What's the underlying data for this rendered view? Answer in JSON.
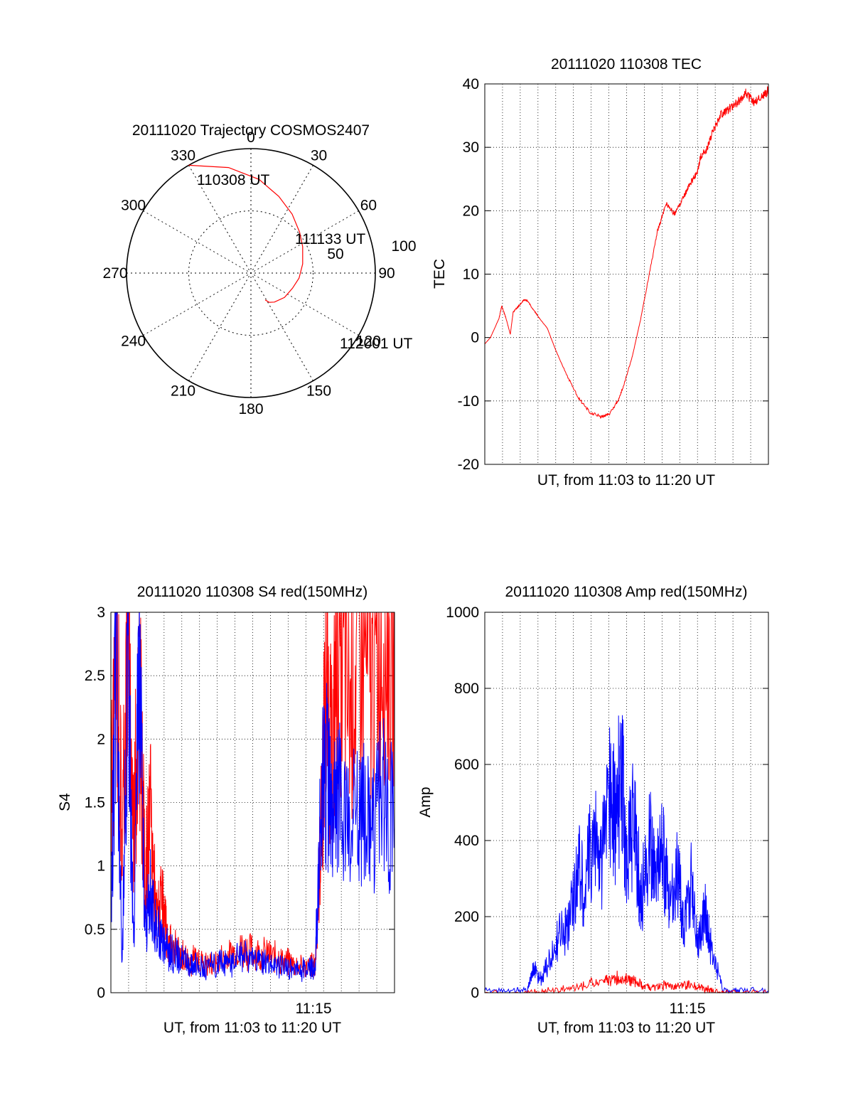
{
  "chart_data": [
    {
      "type": "polar",
      "title": "20111020 Trajectory COSMOS2407",
      "angle_labels": [
        "0",
        "30",
        "60",
        "90",
        "120",
        "150",
        "180",
        "210",
        "240",
        "270",
        "300",
        "330"
      ],
      "radial_labels": [
        "50",
        "100"
      ],
      "annotations": {
        "start_label": "110308 UT",
        "mid_label": "111133 UT",
        "end_label": "112001 UT"
      },
      "series": [
        {
          "color": "#ff0000",
          "points_az_el": [
            [
              330,
              0
            ],
            [
              348,
              12
            ],
            [
              5,
              22
            ],
            [
              20,
              31
            ],
            [
              35,
              38
            ],
            [
              50,
              44
            ],
            [
              63,
              48
            ],
            [
              80,
              52
            ],
            [
              96,
              55
            ],
            [
              110,
              58
            ],
            [
              126,
              60
            ],
            [
              141,
              63
            ],
            [
              148,
              65
            ],
            [
              152,
              68
            ]
          ]
        }
      ]
    },
    {
      "type": "line",
      "title": "20111020 110308 TEC",
      "xlabel": "UT, from 11:03 to 11:20 UT",
      "ylabel": "TEC",
      "ylim": [
        -20,
        40
      ],
      "yticks": [
        "-20",
        "-10",
        "0",
        "10",
        "20",
        "30",
        "40"
      ],
      "xlim": [
        0,
        1
      ],
      "grid": true,
      "series": [
        {
          "color": "#ff0000",
          "x": [
            0,
            0.02,
            0.05,
            0.06,
            0.075,
            0.09,
            0.1,
            0.12,
            0.14,
            0.15,
            0.17,
            0.19,
            0.22,
            0.25,
            0.29,
            0.33,
            0.37,
            0.41,
            0.44,
            0.47,
            0.49,
            0.52,
            0.55,
            0.58,
            0.61,
            0.64,
            0.67,
            0.7,
            0.72,
            0.75,
            0.76,
            0.78,
            0.8,
            0.83,
            0.86,
            0.89,
            0.92,
            0.95,
            0.98,
            1.0
          ],
          "y": [
            -1,
            0,
            3,
            5,
            3,
            0.5,
            4,
            5,
            6,
            5.8,
            4.5,
            3.2,
            1.5,
            -2,
            -6,
            -9.5,
            -11.8,
            -12.5,
            -12,
            -10,
            -7.5,
            -3,
            3,
            10,
            17,
            21,
            19.5,
            22,
            24,
            26,
            28.5,
            29.5,
            32,
            35,
            36,
            37,
            38.5,
            37,
            38,
            39
          ]
        }
      ]
    },
    {
      "type": "line",
      "title": "20111020 110308 S4 red(150MHz)",
      "xlabel": "UT, from 11:03 to 11:20 UT",
      "ylabel": "S4",
      "ylim": [
        0,
        3
      ],
      "yticks": [
        "0",
        "0.5",
        "1",
        "1.5",
        "2",
        "2.5",
        "3"
      ],
      "xtick_label": "11:15",
      "grid": true,
      "series": [
        {
          "color": "#ff0000",
          "x": [
            0.0,
            0.02,
            0.04,
            0.06,
            0.08,
            0.1,
            0.12,
            0.14,
            0.16,
            0.18,
            0.2,
            0.22,
            0.25,
            0.28,
            0.3,
            0.34,
            0.38,
            0.42,
            0.46,
            0.5,
            0.54,
            0.58,
            0.62,
            0.66,
            0.7,
            0.72,
            0.74,
            0.76,
            0.78,
            0.8,
            0.84,
            0.88,
            0.92,
            0.96,
            1.0
          ],
          "y": [
            1.5,
            2.8,
            1.2,
            2.9,
            1.3,
            2.5,
            0.9,
            1.4,
            0.6,
            0.7,
            0.4,
            0.35,
            0.3,
            0.25,
            0.27,
            0.22,
            0.25,
            0.3,
            0.35,
            0.32,
            0.3,
            0.28,
            0.25,
            0.2,
            0.22,
            0.2,
            1.2,
            2.5,
            1.7,
            2.9,
            2.2,
            2.8,
            2.4,
            2.9,
            2.6
          ]
        },
        {
          "color": "#0000ff",
          "x": [
            0.0,
            0.02,
            0.04,
            0.06,
            0.08,
            0.1,
            0.12,
            0.14,
            0.16,
            0.18,
            0.2,
            0.22,
            0.25,
            0.28,
            0.3,
            0.34,
            0.38,
            0.42,
            0.46,
            0.5,
            0.54,
            0.58,
            0.62,
            0.66,
            0.7,
            0.72,
            0.74,
            0.76,
            0.78,
            0.8,
            0.84,
            0.88,
            0.92,
            0.96,
            1.0
          ],
          "y": [
            0.5,
            2.9,
            0.2,
            2.8,
            0.3,
            2.7,
            0.5,
            0.8,
            0.5,
            0.4,
            0.35,
            0.3,
            0.27,
            0.22,
            0.23,
            0.2,
            0.22,
            0.25,
            0.28,
            0.26,
            0.23,
            0.21,
            0.2,
            0.18,
            0.2,
            0.18,
            1.5,
            1.8,
            1.2,
            1.6,
            1.3,
            1.5,
            1.2,
            1.6,
            1.3
          ]
        }
      ]
    },
    {
      "type": "line",
      "title": "20111020 110308 Amp red(150MHz)",
      "xlabel": "UT, from 11:03 to 11:20 UT",
      "ylabel": "Amp",
      "ylim": [
        0,
        1000
      ],
      "yticks": [
        "0",
        "200",
        "400",
        "600",
        "800",
        "1000"
      ],
      "xtick_label": "11:15",
      "grid": true,
      "series": [
        {
          "color": "#0000ff",
          "x": [
            0,
            0.1,
            0.15,
            0.17,
            0.2,
            0.24,
            0.27,
            0.3,
            0.33,
            0.35,
            0.38,
            0.41,
            0.44,
            0.46,
            0.48,
            0.5,
            0.53,
            0.55,
            0.58,
            0.6,
            0.63,
            0.65,
            0.68,
            0.7,
            0.73,
            0.75,
            0.78,
            0.8,
            0.84,
            0.9,
            1.0
          ],
          "y": [
            5,
            5,
            10,
            60,
            40,
            100,
            160,
            180,
            350,
            260,
            420,
            330,
            560,
            450,
            590,
            380,
            460,
            230,
            410,
            290,
            390,
            210,
            320,
            180,
            290,
            140,
            210,
            110,
            5,
            5,
            5
          ]
        },
        {
          "color": "#ff0000",
          "x": [
            0,
            0.15,
            0.22,
            0.3,
            0.36,
            0.42,
            0.46,
            0.5,
            0.53,
            0.56,
            0.6,
            0.65,
            0.7,
            0.75,
            0.78,
            0.8,
            0.84,
            1.0
          ],
          "y": [
            0,
            0,
            5,
            10,
            20,
            30,
            40,
            35,
            30,
            15,
            15,
            20,
            20,
            15,
            10,
            5,
            0,
            0
          ]
        }
      ]
    }
  ]
}
